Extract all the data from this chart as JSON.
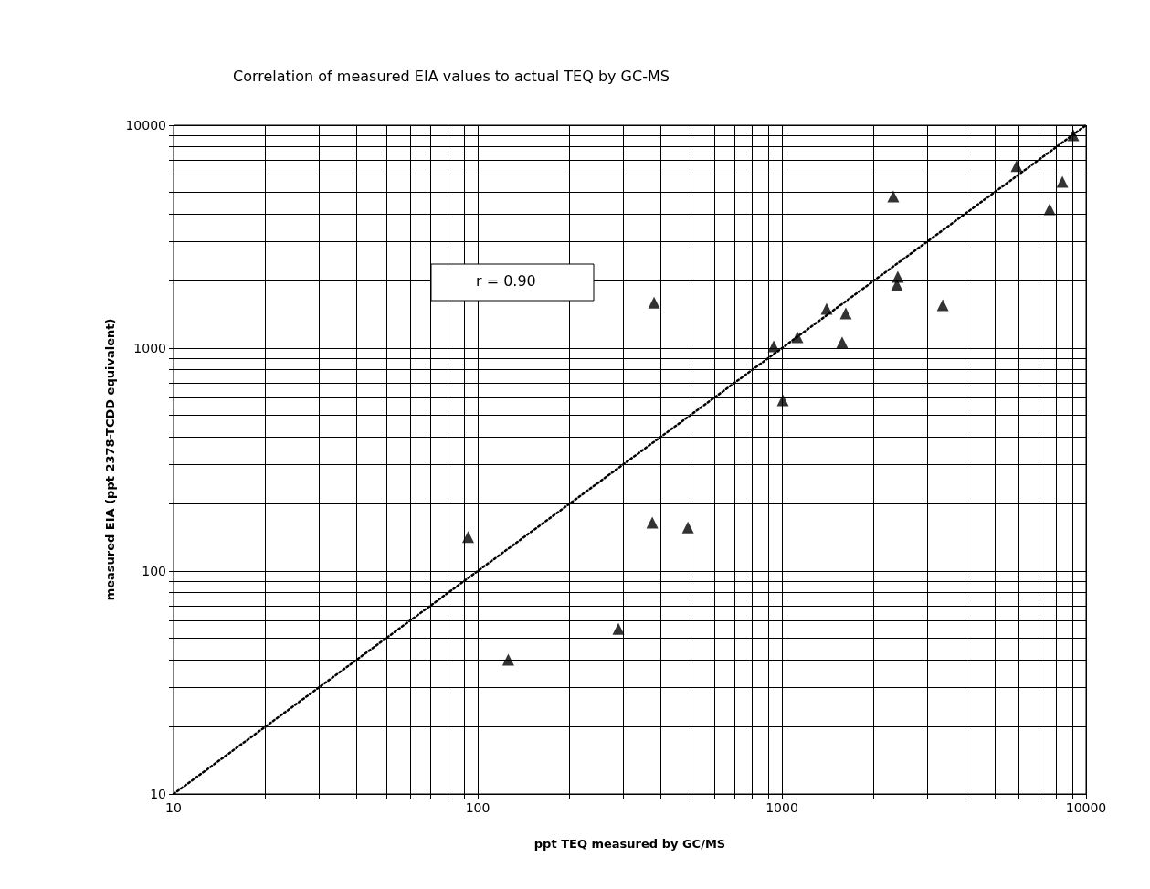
{
  "chart_data": {
    "type": "scatter",
    "title": "Correlation of measured EIA values to actual TEQ by GC-MS",
    "xlabel": "ppt TEQ measured by GC/MS",
    "ylabel": "measured EIA (ppt 2378-TCDD equivalent)",
    "log": "xy",
    "grid": true,
    "xlim": [
      10,
      10000
    ],
    "ylim": [
      10,
      10000
    ],
    "xticks": [
      10,
      {
        "value": 20,
        "label": null
      },
      {
        "value": 30,
        "label": null
      },
      {
        "value": 40,
        "label": null
      },
      {
        "value": 50,
        "label": null
      },
      {
        "value": 60,
        "label": null
      },
      {
        "value": 70,
        "label": null
      },
      {
        "value": 80,
        "label": null
      },
      {
        "value": 90,
        "label": null
      },
      100,
      {
        "value": 200,
        "label": null
      },
      {
        "value": 300,
        "label": null
      },
      {
        "value": 400,
        "label": null
      },
      {
        "value": 500,
        "label": null
      },
      {
        "value": 600,
        "label": null
      },
      {
        "value": 700,
        "label": null
      },
      {
        "value": 800,
        "label": null
      },
      {
        "value": 900,
        "label": null
      },
      1000,
      {
        "value": 2000,
        "label": null
      },
      {
        "value": 3000,
        "label": null
      },
      {
        "value": 4000,
        "label": null
      },
      {
        "value": 5000,
        "label": null
      },
      {
        "value": 6000,
        "label": null
      },
      {
        "value": 7000,
        "label": null
      },
      {
        "value": 8000,
        "label": null
      },
      {
        "value": 9000,
        "label": null
      },
      10000
    ],
    "yticks": [
      10,
      {
        "value": 20,
        "label": null
      },
      {
        "value": 30,
        "label": null
      },
      {
        "value": 40,
        "label": null
      },
      {
        "value": 50,
        "label": null
      },
      {
        "value": 60,
        "label": null
      },
      {
        "value": 70,
        "label": null
      },
      {
        "value": 80,
        "label": null
      },
      {
        "value": 90,
        "label": null
      },
      100,
      {
        "value": 200,
        "label": null
      },
      {
        "value": 300,
        "label": null
      },
      {
        "value": 400,
        "label": null
      },
      {
        "value": 500,
        "label": null
      },
      {
        "value": 600,
        "label": null
      },
      {
        "value": 700,
        "label": null
      },
      {
        "value": 800,
        "label": null
      },
      {
        "value": 900,
        "label": null
      },
      1000,
      {
        "value": 2000,
        "label": null
      },
      {
        "value": 3000,
        "label": null
      },
      {
        "value": 4000,
        "label": null
      },
      {
        "value": 5000,
        "label": null
      },
      {
        "value": 6000,
        "label": null
      },
      {
        "value": 7000,
        "label": null
      },
      {
        "value": 8000,
        "label": null
      },
      {
        "value": 9000,
        "label": null
      },
      10000
    ],
    "annotations": [
      "r = 0.90"
    ],
    "series": [
      {
        "type": "scatter",
        "color": "#000000",
        "marker": "triangle",
        "x": [
          93,
          126,
          290,
          375,
          491,
          380,
          940,
          1007,
          1125,
          1403,
          1622,
          1578,
          2324,
          2404,
          2388,
          3380,
          5910,
          7590,
          8360,
          9080
        ],
        "values": [
          142,
          40,
          55,
          165,
          157,
          1600,
          1020,
          584,
          1120,
          1500,
          1430,
          1060,
          4790,
          2090,
          1920,
          1560,
          6550,
          4200,
          5570,
          9010
        ]
      },
      {
        "type": "line",
        "color": "#000000",
        "line_style": "dotted",
        "marker": "none",
        "x": [
          10,
          10000
        ],
        "values": [
          10,
          10000
        ]
      }
    ]
  }
}
